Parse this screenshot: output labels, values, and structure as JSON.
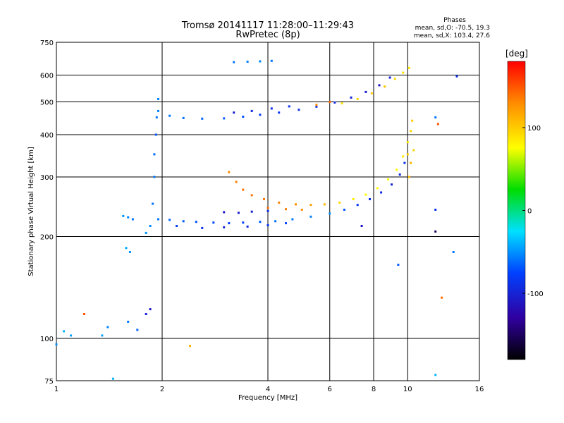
{
  "chart_data": {
    "type": "scatter",
    "title": "Tromsø 20141117 11:28:00–11:29:43",
    "subtitle": "RwPretec (8p)",
    "stats": {
      "heading": "Phases",
      "line1": "mean, sd,O: -70.5, 19.3",
      "line2": "mean, sd,X: 103.4, 27.6"
    },
    "xlabel": "Frequency [MHz]",
    "ylabel": "Stationary phase Virtual Height [km]",
    "xscale": "log",
    "yscale": "log",
    "xlim": [
      1,
      16
    ],
    "ylim": [
      75,
      750
    ],
    "grid": true,
    "xticks": [
      1,
      2,
      4,
      6,
      8,
      10,
      16
    ],
    "xtick_labels": [
      "1",
      "2",
      "4",
      "6",
      "8",
      "10",
      "16"
    ],
    "yticks": [
      75,
      100,
      200,
      300,
      400,
      500,
      600,
      750
    ],
    "ytick_labels": [
      "75",
      "100",
      "200",
      "300",
      "400",
      "500",
      "600",
      "750"
    ],
    "colorbar": {
      "label": "[deg]",
      "range": [
        -180,
        180
      ],
      "ticks": [
        100,
        0,
        -100
      ],
      "tick_labels": [
        "100",
        "0",
        "-100"
      ],
      "placement": "right",
      "colors": [
        "#ff0000",
        "#ff8c00",
        "#ffff00",
        "#00dd00",
        "#00e0ff",
        "#0040ff",
        "#3000a0",
        "#000000"
      ]
    },
    "series": [
      {
        "points": [
          {
            "x": 1.95,
            "y": 225,
            "p": -60
          },
          {
            "x": 2.1,
            "y": 224,
            "p": -65
          },
          {
            "x": 2.3,
            "y": 222,
            "p": -70
          },
          {
            "x": 2.5,
            "y": 221,
            "p": -72
          },
          {
            "x": 2.8,
            "y": 220,
            "p": -75
          },
          {
            "x": 3.1,
            "y": 219,
            "p": -80
          },
          {
            "x": 3.4,
            "y": 220,
            "p": -78
          },
          {
            "x": 3.8,
            "y": 221,
            "p": -70
          },
          {
            "x": 4.2,
            "y": 222,
            "p": -62
          },
          {
            "x": 4.7,
            "y": 225,
            "p": -58
          },
          {
            "x": 5.3,
            "y": 229,
            "p": -55
          },
          {
            "x": 6.0,
            "y": 234,
            "p": -50
          },
          {
            "x": 6.6,
            "y": 240,
            "p": -70
          },
          {
            "x": 7.2,
            "y": 248,
            "p": -85
          },
          {
            "x": 7.8,
            "y": 258,
            "p": -90
          },
          {
            "x": 8.4,
            "y": 270,
            "p": -95
          },
          {
            "x": 9.0,
            "y": 285,
            "p": -100
          },
          {
            "x": 9.5,
            "y": 305,
            "p": -95
          },
          {
            "x": 9.8,
            "y": 330,
            "p": -90
          },
          {
            "x": 2.2,
            "y": 215,
            "p": -80
          },
          {
            "x": 2.6,
            "y": 212,
            "p": -90
          },
          {
            "x": 3.0,
            "y": 213,
            "p": -100
          },
          {
            "x": 3.5,
            "y": 214,
            "p": -95
          },
          {
            "x": 4.0,
            "y": 216,
            "p": -85
          },
          {
            "x": 4.5,
            "y": 219,
            "p": -75
          },
          {
            "x": 3.0,
            "y": 236,
            "p": -110
          },
          {
            "x": 3.3,
            "y": 235,
            "p": -105
          },
          {
            "x": 3.6,
            "y": 237,
            "p": -100
          },
          {
            "x": 4.0,
            "y": 238,
            "p": -95
          }
        ]
      },
      {
        "points": [
          {
            "x": 3.1,
            "y": 310,
            "p": 130
          },
          {
            "x": 3.25,
            "y": 290,
            "p": 135
          },
          {
            "x": 3.4,
            "y": 275,
            "p": 140
          },
          {
            "x": 3.6,
            "y": 265,
            "p": 138
          },
          {
            "x": 3.9,
            "y": 258,
            "p": 135
          },
          {
            "x": 4.3,
            "y": 252,
            "p": 132
          },
          {
            "x": 4.8,
            "y": 249,
            "p": 128
          },
          {
            "x": 5.3,
            "y": 248,
            "p": 120
          },
          {
            "x": 5.8,
            "y": 249,
            "p": 110
          },
          {
            "x": 6.4,
            "y": 252,
            "p": 95
          },
          {
            "x": 7.0,
            "y": 258,
            "p": 85
          },
          {
            "x": 7.6,
            "y": 266,
            "p": 80
          },
          {
            "x": 8.2,
            "y": 278,
            "p": 78
          },
          {
            "x": 8.8,
            "y": 295,
            "p": 75
          },
          {
            "x": 9.3,
            "y": 315,
            "p": 80
          },
          {
            "x": 9.7,
            "y": 345,
            "p": 85
          },
          {
            "x": 10.0,
            "y": 380,
            "p": 90
          },
          {
            "x": 10.2,
            "y": 410,
            "p": 95
          },
          {
            "x": 10.3,
            "y": 440,
            "p": 100
          },
          {
            "x": 4.0,
            "y": 243,
            "p": 140
          },
          {
            "x": 4.5,
            "y": 241,
            "p": 135
          },
          {
            "x": 5.0,
            "y": 240,
            "p": 125
          },
          {
            "x": 10.1,
            "y": 300,
            "p": 105
          },
          {
            "x": 10.2,
            "y": 330,
            "p": 110
          },
          {
            "x": 10.0,
            "y": 350,
            "p": 100
          },
          {
            "x": 10.4,
            "y": 360,
            "p": 95
          }
        ]
      },
      {
        "points": [
          {
            "x": 1.95,
            "y": 470,
            "p": -55
          },
          {
            "x": 2.1,
            "y": 455,
            "p": -60
          },
          {
            "x": 2.3,
            "y": 448,
            "p": -62
          },
          {
            "x": 2.6,
            "y": 446,
            "p": -65
          },
          {
            "x": 3.0,
            "y": 447,
            "p": -68
          },
          {
            "x": 3.4,
            "y": 452,
            "p": -75
          },
          {
            "x": 3.8,
            "y": 458,
            "p": -80
          },
          {
            "x": 4.3,
            "y": 465,
            "p": -85
          },
          {
            "x": 4.9,
            "y": 474,
            "p": -90
          },
          {
            "x": 5.5,
            "y": 484,
            "p": -92
          },
          {
            "x": 6.2,
            "y": 498,
            "p": -95
          },
          {
            "x": 6.9,
            "y": 515,
            "p": -100
          },
          {
            "x": 7.6,
            "y": 535,
            "p": -105
          },
          {
            "x": 8.3,
            "y": 560,
            "p": -110
          },
          {
            "x": 8.9,
            "y": 590,
            "p": -100
          },
          {
            "x": 3.2,
            "y": 465,
            "p": -100
          },
          {
            "x": 3.6,
            "y": 470,
            "p": -95
          },
          {
            "x": 4.1,
            "y": 478,
            "p": -90
          },
          {
            "x": 4.6,
            "y": 485,
            "p": -85
          },
          {
            "x": 3.2,
            "y": 655,
            "p": -60
          },
          {
            "x": 3.5,
            "y": 657,
            "p": -58
          },
          {
            "x": 3.8,
            "y": 659,
            "p": -55
          },
          {
            "x": 4.1,
            "y": 661,
            "p": -60
          }
        ]
      },
      {
        "points": [
          {
            "x": 6.5,
            "y": 495,
            "p": 90
          },
          {
            "x": 7.2,
            "y": 510,
            "p": 95
          },
          {
            "x": 7.9,
            "y": 530,
            "p": 100
          },
          {
            "x": 8.6,
            "y": 555,
            "p": 105
          },
          {
            "x": 9.2,
            "y": 585,
            "p": 95
          },
          {
            "x": 9.7,
            "y": 610,
            "p": 90
          },
          {
            "x": 10.1,
            "y": 630,
            "p": 85
          },
          {
            "x": 5.5,
            "y": 490,
            "p": 130
          },
          {
            "x": 6.0,
            "y": 500,
            "p": 140
          }
        ]
      },
      {
        "points": [
          {
            "x": 1.9,
            "y": 300,
            "p": -60
          },
          {
            "x": 1.9,
            "y": 350,
            "p": -65
          },
          {
            "x": 1.92,
            "y": 400,
            "p": -70
          },
          {
            "x": 1.93,
            "y": 450,
            "p": -60
          },
          {
            "x": 1.95,
            "y": 510,
            "p": -55
          },
          {
            "x": 1.88,
            "y": 250,
            "p": -60
          },
          {
            "x": 1.85,
            "y": 215,
            "p": -55
          },
          {
            "x": 1.8,
            "y": 205,
            "p": -50
          },
          {
            "x": 1.55,
            "y": 230,
            "p": -50
          },
          {
            "x": 1.6,
            "y": 228,
            "p": -55
          },
          {
            "x": 1.65,
            "y": 225,
            "p": -60
          },
          {
            "x": 1.58,
            "y": 185,
            "p": -45
          },
          {
            "x": 1.62,
            "y": 180,
            "p": -50
          },
          {
            "x": 1.05,
            "y": 105,
            "p": -40
          },
          {
            "x": 1.1,
            "y": 102,
            "p": -45
          },
          {
            "x": 1.0,
            "y": 96,
            "p": -50
          },
          {
            "x": 1.35,
            "y": 102,
            "p": -45
          },
          {
            "x": 1.4,
            "y": 108,
            "p": -55
          },
          {
            "x": 1.6,
            "y": 112,
            "p": -60
          },
          {
            "x": 1.7,
            "y": 106,
            "p": -65
          },
          {
            "x": 1.8,
            "y": 118,
            "p": -100
          },
          {
            "x": 1.85,
            "y": 122,
            "p": -110
          },
          {
            "x": 1.2,
            "y": 118,
            "p": 150
          },
          {
            "x": 1.45,
            "y": 76,
            "p": -40
          },
          {
            "x": 12.0,
            "y": 240,
            "p": -90
          },
          {
            "x": 12.0,
            "y": 207,
            "p": -150
          },
          {
            "x": 12.5,
            "y": 132,
            "p": 140
          },
          {
            "x": 13.5,
            "y": 180,
            "p": -60
          },
          {
            "x": 12.0,
            "y": 450,
            "p": -60
          },
          {
            "x": 12.2,
            "y": 430,
            "p": 150
          },
          {
            "x": 13.8,
            "y": 595,
            "p": -90
          },
          {
            "x": 9.4,
            "y": 165,
            "p": -70
          },
          {
            "x": 7.4,
            "y": 215,
            "p": -110
          },
          {
            "x": 2.4,
            "y": 95,
            "p": 110
          },
          {
            "x": 12.0,
            "y": 78,
            "p": -40
          }
        ]
      }
    ]
  }
}
